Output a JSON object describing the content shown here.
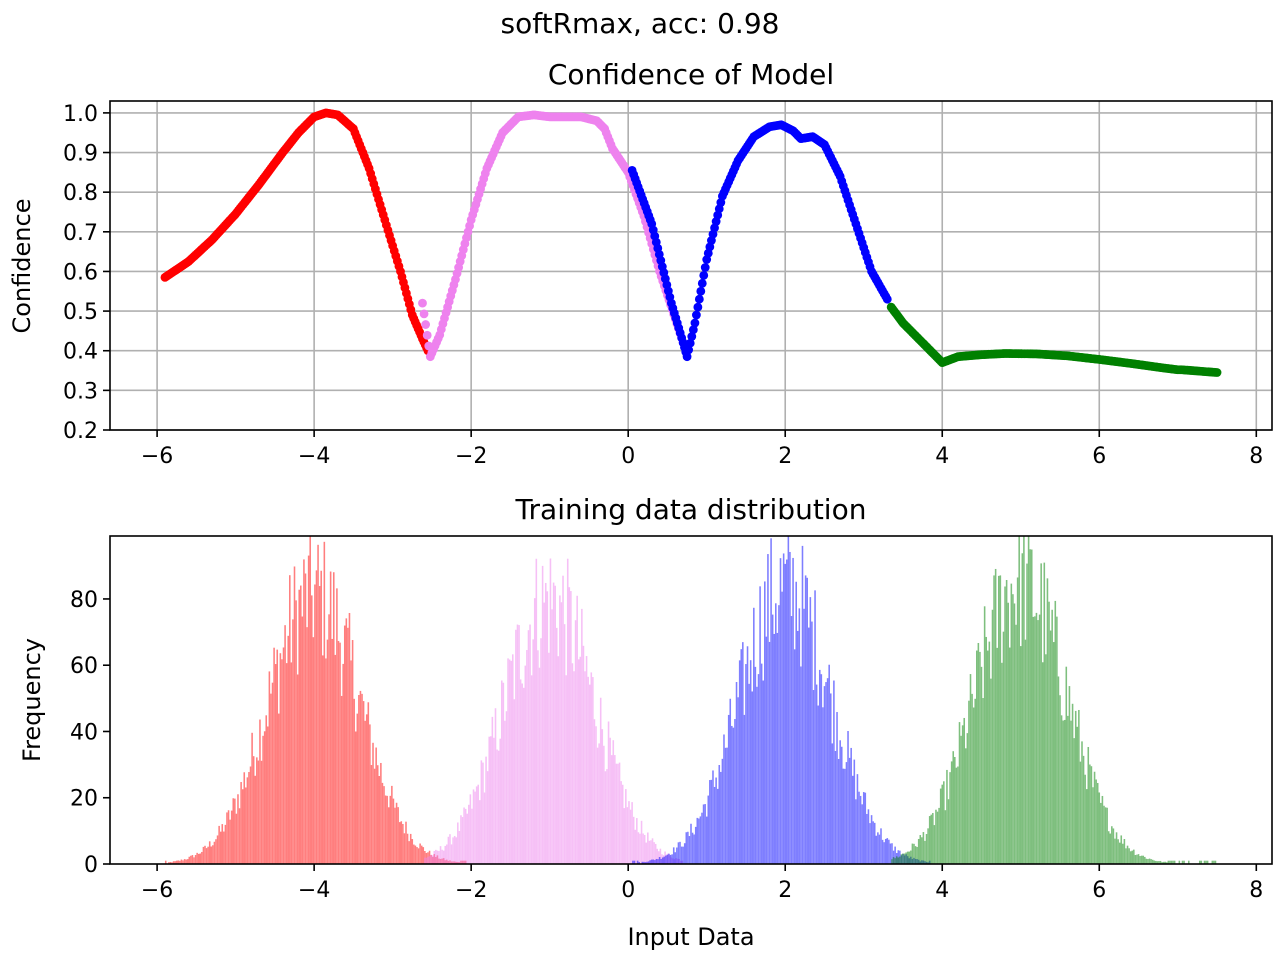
{
  "suptitle": "softRmax, acc: 0.98",
  "colors": {
    "red": "#ff0000",
    "violet": "#ee82ee",
    "blue": "#0000ff",
    "green": "#008000",
    "grid": "#b0b0b0",
    "axis": "#000000"
  },
  "chart_data": [
    {
      "type": "scatter",
      "title": "Confidence of Model",
      "xlabel": "",
      "ylabel": "Confidence",
      "xlim": [
        -6.6,
        8.2
      ],
      "ylim": [
        0.2,
        1.03
      ],
      "xticks": [
        -6,
        -4,
        -2,
        0,
        2,
        4,
        6,
        8
      ],
      "xtick_labels": [
        "−6",
        "−4",
        "−2",
        "0",
        "2",
        "4",
        "6",
        "8"
      ],
      "yticks": [
        0.2,
        0.3,
        0.4,
        0.5,
        0.6,
        0.7,
        0.8,
        0.9,
        1.0
      ],
      "ytick_labels": [
        "0.2",
        "0.3",
        "0.4",
        "0.5",
        "0.6",
        "0.7",
        "0.8",
        "0.9",
        "1.0"
      ],
      "grid": true,
      "series": [
        {
          "color": "red",
          "x": [
            -5.9,
            -5.6,
            -5.3,
            -5.0,
            -4.7,
            -4.4,
            -4.2,
            -4.0,
            -3.85,
            -3.7,
            -3.5,
            -3.3,
            -3.1,
            -2.9,
            -2.75,
            -2.62,
            -2.55
          ],
          "y": [
            0.585,
            0.625,
            0.68,
            0.745,
            0.82,
            0.9,
            0.95,
            0.99,
            1.0,
            0.995,
            0.96,
            0.86,
            0.73,
            0.6,
            0.49,
            0.43,
            0.4
          ]
        },
        {
          "color": "violet",
          "x": [
            -2.62,
            -2.52,
            -2.4,
            -2.2,
            -2.0,
            -1.8,
            -1.6,
            -1.4,
            -1.2,
            -1.0,
            -0.8,
            -0.6,
            -0.4,
            -0.3,
            -0.2,
            0.0,
            0.2,
            0.4,
            0.6,
            0.7
          ],
          "y": [
            0.52,
            0.385,
            0.44,
            0.58,
            0.73,
            0.86,
            0.95,
            0.99,
            0.995,
            0.99,
            0.99,
            0.99,
            0.98,
            0.96,
            0.91,
            0.85,
            0.74,
            0.6,
            0.48,
            0.42
          ]
        },
        {
          "color": "blue",
          "x": [
            0.05,
            0.3,
            0.55,
            0.7,
            0.75,
            0.85,
            1.0,
            1.2,
            1.4,
            1.6,
            1.8,
            1.95,
            2.1,
            2.2,
            2.35,
            2.5,
            2.7,
            2.9,
            3.1,
            3.3
          ],
          "y": [
            0.855,
            0.72,
            0.52,
            0.42,
            0.385,
            0.47,
            0.63,
            0.79,
            0.88,
            0.94,
            0.965,
            0.97,
            0.955,
            0.935,
            0.94,
            0.92,
            0.84,
            0.72,
            0.6,
            0.53
          ]
        },
        {
          "color": "green",
          "x": [
            3.35,
            3.5,
            3.7,
            3.85,
            4.0,
            4.2,
            4.5,
            4.8,
            5.2,
            5.6,
            6.0,
            6.4,
            6.8,
            7.0,
            7.05,
            7.5
          ],
          "y": [
            0.51,
            0.47,
            0.43,
            0.4,
            0.37,
            0.385,
            0.39,
            0.393,
            0.392,
            0.387,
            0.378,
            0.368,
            0.357,
            0.352,
            0.352,
            0.345
          ]
        }
      ]
    },
    {
      "type": "histogram",
      "title": "Training data distribution",
      "xlabel": "Input Data",
      "ylabel": "Frequency",
      "xlim": [
        -6.6,
        8.2
      ],
      "ylim": [
        0,
        99
      ],
      "xticks": [
        -6,
        -4,
        -2,
        0,
        2,
        4,
        6,
        8
      ],
      "xtick_labels": [
        "−6",
        "−4",
        "−2",
        "0",
        "2",
        "4",
        "6",
        "8"
      ],
      "yticks": [
        0,
        20,
        40,
        60,
        80
      ],
      "ytick_labels": [
        "0",
        "20",
        "40",
        "60",
        "80"
      ],
      "grid": false,
      "bin_width": 0.02,
      "opacity": 0.5,
      "series": [
        {
          "color": "red",
          "center": -4.0,
          "sigma": 0.58,
          "peak": 84,
          "min_x": -5.9,
          "max_x": -2.05
        },
        {
          "color": "violet",
          "center": -1.0,
          "sigma": 0.58,
          "peak": 82,
          "min_x": -2.6,
          "max_x": 0.7
        },
        {
          "color": "blue",
          "center": 2.0,
          "sigma": 0.58,
          "peak": 86,
          "min_x": 0.05,
          "max_x": 3.85
        },
        {
          "color": "green",
          "center": 5.0,
          "sigma": 0.58,
          "peak": 88,
          "min_x": 3.35,
          "max_x": 7.5
        }
      ]
    }
  ]
}
